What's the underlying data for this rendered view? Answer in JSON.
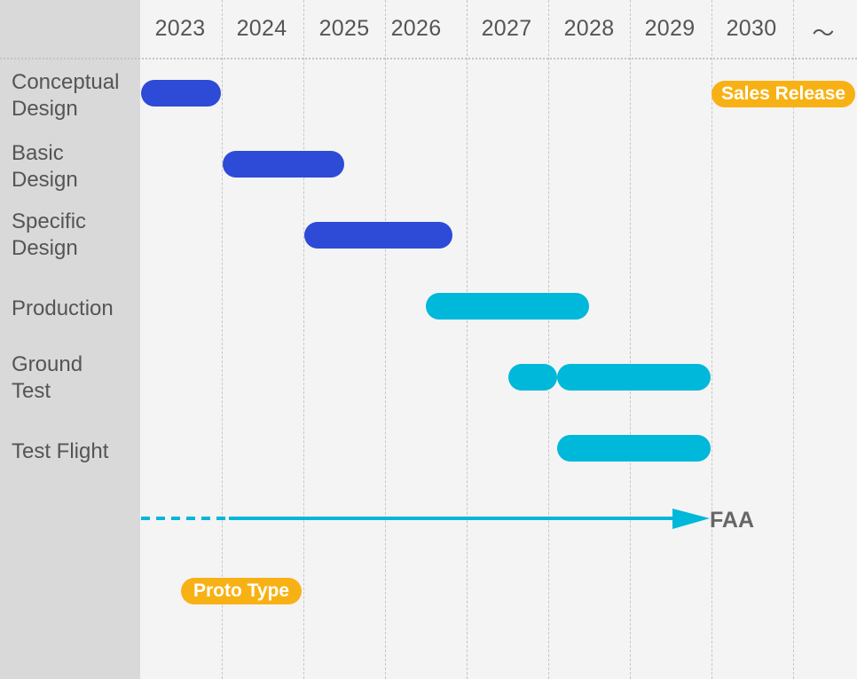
{
  "timeline": {
    "years": [
      "2023",
      "2024",
      "2025",
      "2026",
      "2027",
      "2028",
      "2029",
      "2030",
      "〜"
    ]
  },
  "tasks": [
    {
      "label": "Conceptual\nDesign"
    },
    {
      "label": "Basic\nDesign"
    },
    {
      "label": "Specific\nDesign"
    },
    {
      "label": "Production"
    },
    {
      "label": "Ground\nTest"
    },
    {
      "label": "Test Flight"
    }
  ],
  "milestones": {
    "sales_release": "Sales Release",
    "proto_type": "Proto Type",
    "faa": "FAA"
  },
  "colors": {
    "design": "#2d4bd6",
    "build": "#00b8d9",
    "milestone": "#f8b114"
  }
}
